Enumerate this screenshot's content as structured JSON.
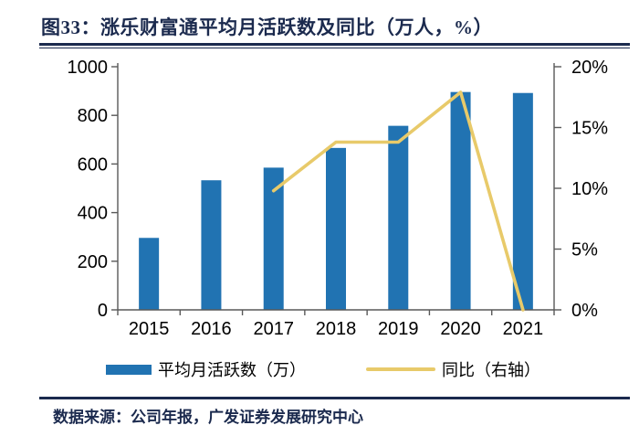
{
  "page": {
    "title": "图33：涨乐财富通平均月活跃数及同比（万人，%）",
    "source": "数据来源：公司年报，广发证券发展研究中心"
  },
  "colors": {
    "navy": "#1B2A4E",
    "bar_blue": "#2173B2",
    "line_gold": "#E8CA6A",
    "axis_gray": "#595959",
    "label_black": "#000000"
  },
  "chart_data": {
    "type": "bar",
    "subtype": "combo-bar-line-dual-axis",
    "title": "涨乐财富通平均月活跃数及同比（万人，%）",
    "categories": [
      "2015",
      "2016",
      "2017",
      "2018",
      "2019",
      "2020",
      "2021"
    ],
    "series": [
      {
        "name": "平均月活跃数（万）",
        "type": "bar",
        "axis": "left",
        "color": "#2173B2",
        "values": [
          296,
          533,
          585,
          666,
          757,
          896,
          892
        ]
      },
      {
        "name": "同比（右轴）",
        "type": "line",
        "axis": "right",
        "color": "#E8CA6A",
        "values": [
          null,
          null,
          9.8,
          13.8,
          13.8,
          17.9,
          0.0
        ]
      }
    ],
    "left_axis": {
      "min": 0,
      "max": 1000,
      "tick_step": 200,
      "tick_labels": [
        "0",
        "200",
        "400",
        "600",
        "800",
        "1000"
      ]
    },
    "right_axis": {
      "min": 0,
      "max": 20,
      "tick_step": 5,
      "tick_labels": [
        "0%",
        "5%",
        "10%",
        "15%",
        "20%"
      ]
    },
    "legend": {
      "position": "bottom",
      "items": [
        "平均月活跃数（万）",
        "同比（右轴）"
      ]
    },
    "grid": false
  }
}
